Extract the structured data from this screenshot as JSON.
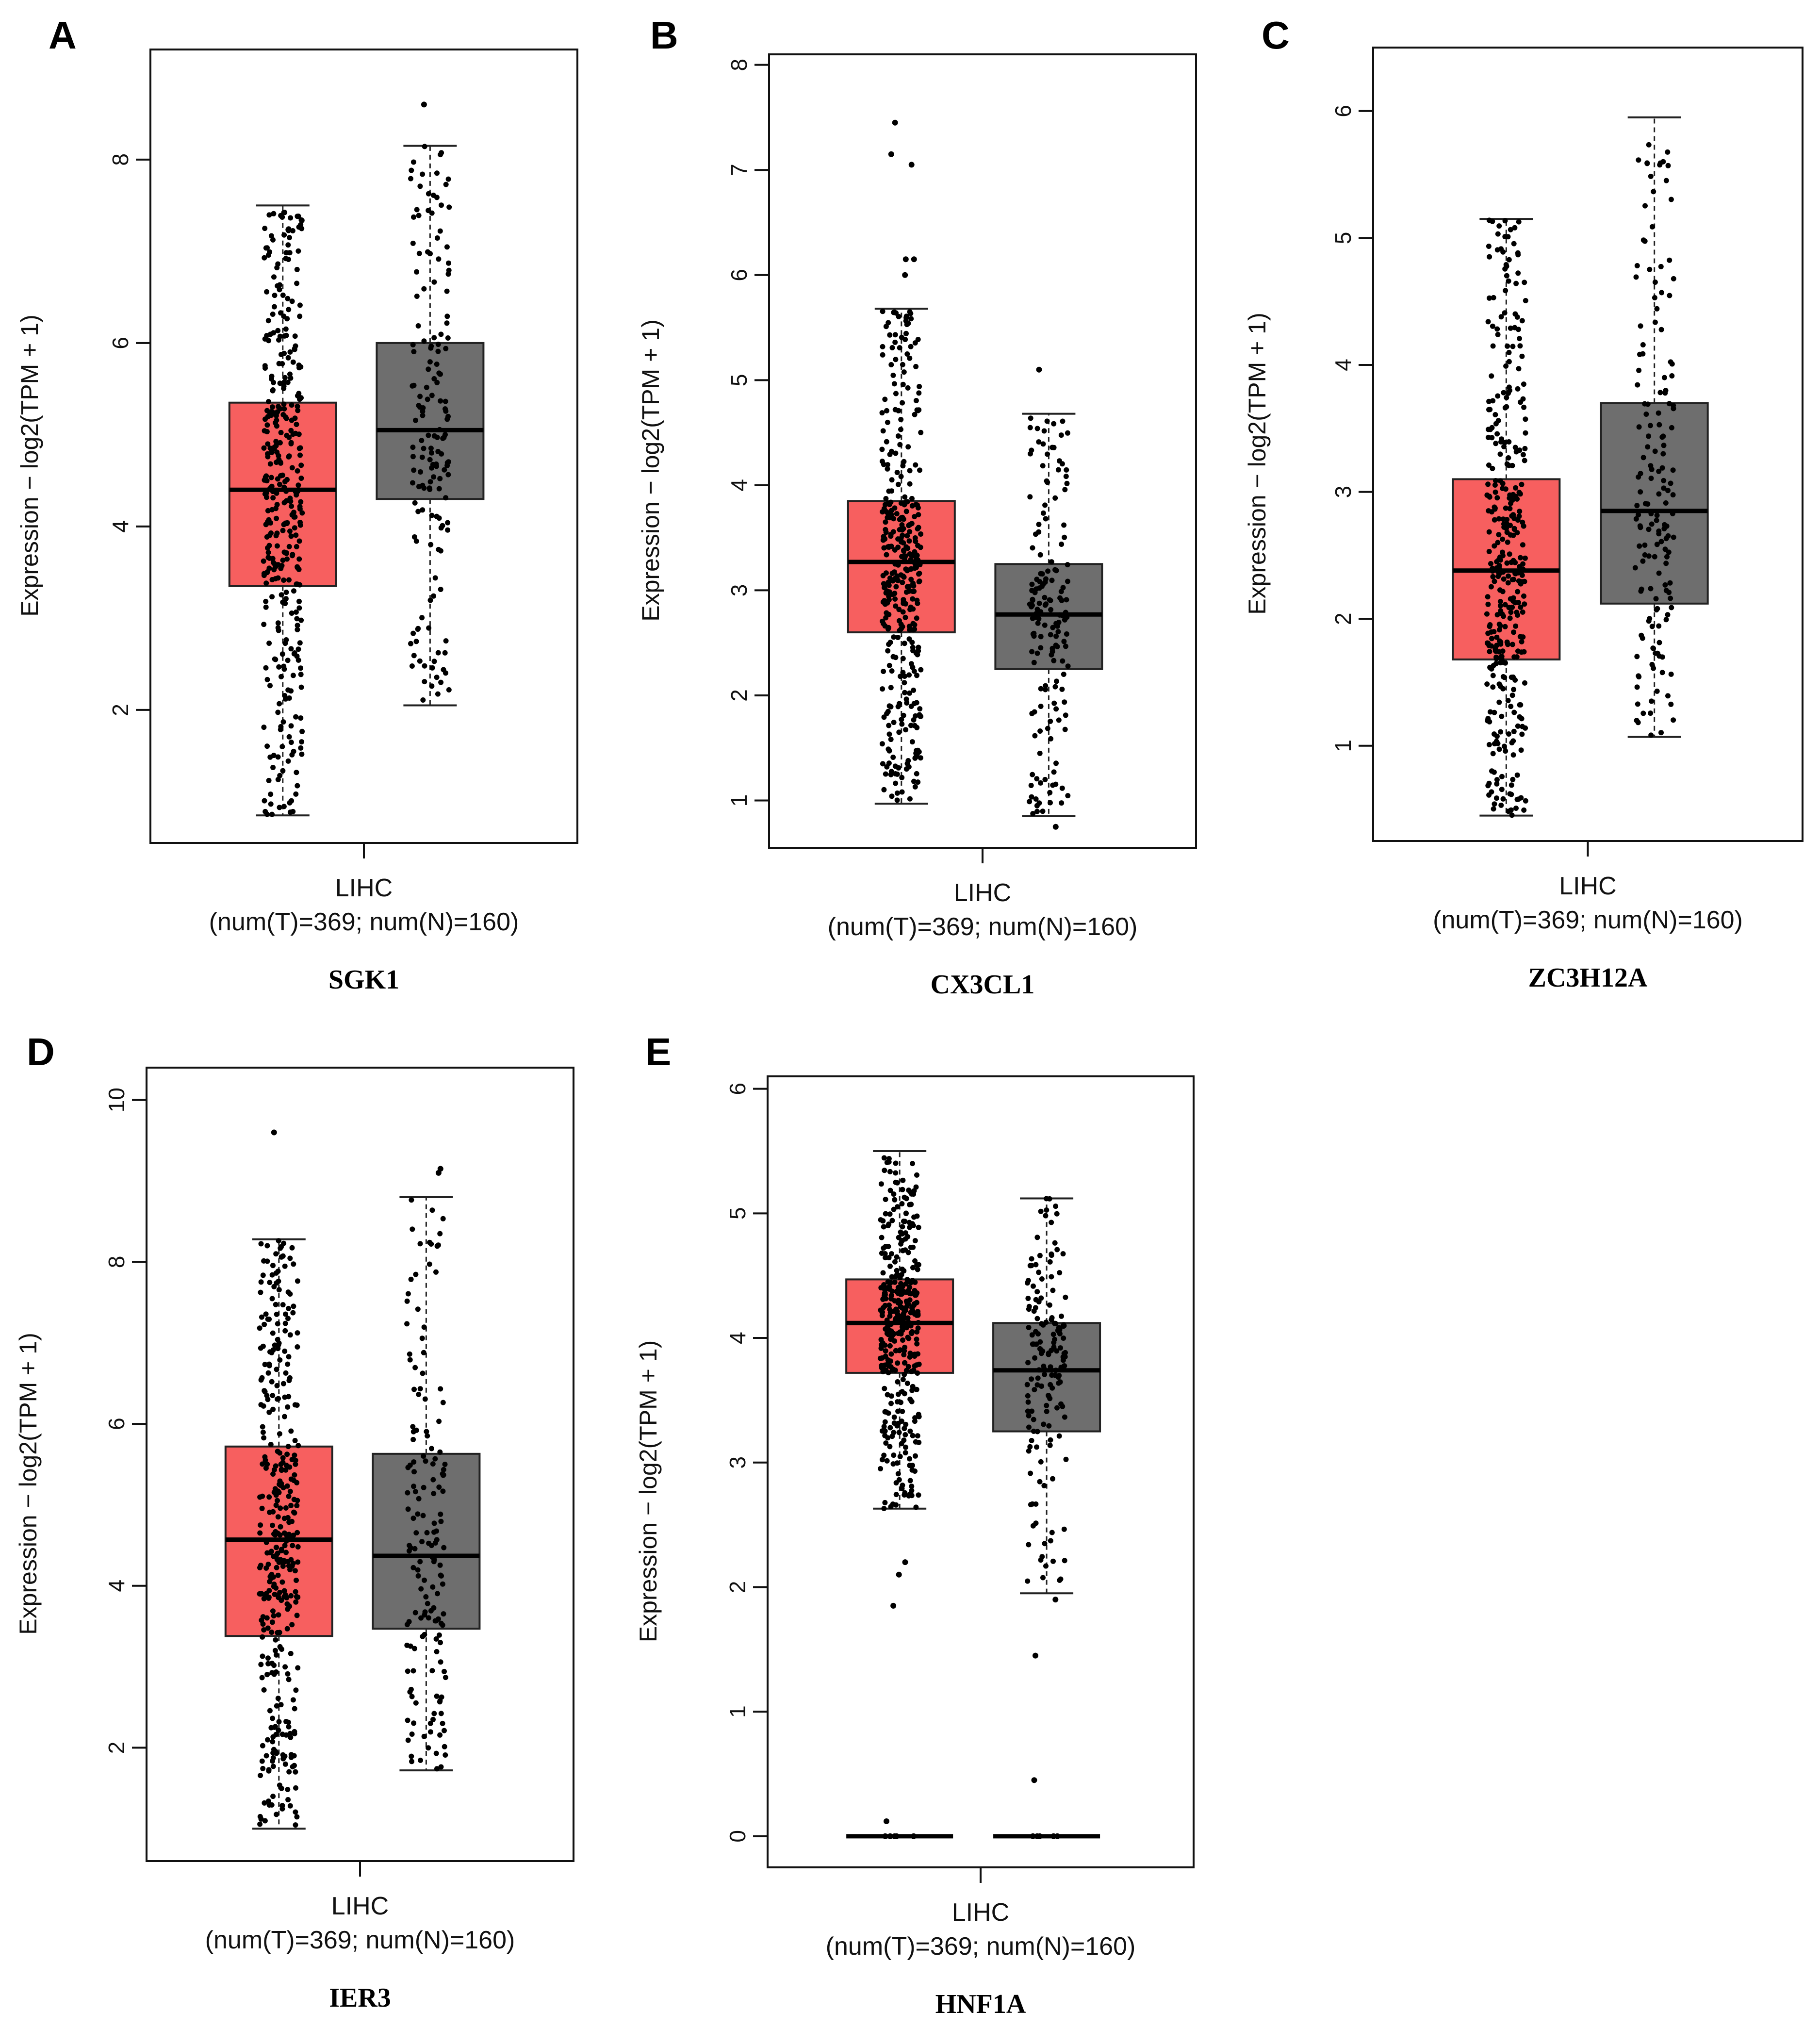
{
  "colors": {
    "tumor": "#F75F5F",
    "normal": "#6E6E6E",
    "dots": "#000000",
    "frame": "#111111"
  },
  "chart_data": [
    {
      "type": "box",
      "panel": "A",
      "title": "SGK1",
      "ylabel": "Expression − log2(TPM + 1)",
      "xlabel": "LIHC",
      "xsublabel": "(num(T)=369; num(N)=160)",
      "ylim": [
        0.55,
        9.2
      ],
      "yticks": [
        2,
        4,
        6,
        8
      ],
      "series": [
        {
          "name": "Tumor",
          "n": 369,
          "min": 0.85,
          "q1": 3.35,
          "median": 4.4,
          "q3": 5.35,
          "max": 7.5,
          "color": "#F75F5F"
        },
        {
          "name": "Normal",
          "n": 160,
          "min": 2.05,
          "q1": 4.3,
          "median": 5.05,
          "q3": 6.0,
          "max": 8.15,
          "color": "#6E6E6E",
          "outliers": [
            8.6
          ]
        }
      ]
    },
    {
      "type": "box",
      "panel": "B",
      "title": "CX3CL1",
      "ylabel": "Expression − log2(TPM + 1)",
      "xlabel": "LIHC",
      "xsublabel": "(num(T)=369; num(N)=160)",
      "ylim": [
        0.55,
        8.1
      ],
      "yticks": [
        1,
        2,
        3,
        4,
        5,
        6,
        7,
        8
      ],
      "series": [
        {
          "name": "Tumor",
          "n": 369,
          "min": 0.97,
          "q1": 2.6,
          "median": 3.27,
          "q3": 3.85,
          "max": 5.68,
          "color": "#F75F5F",
          "outliers": [
            6.0,
            6.15,
            6.15,
            7.05,
            7.15,
            7.45
          ]
        },
        {
          "name": "Normal",
          "n": 160,
          "min": 0.85,
          "q1": 2.25,
          "median": 2.77,
          "q3": 3.25,
          "max": 4.68,
          "color": "#6E6E6E",
          "outliers": [
            5.1,
            0.75
          ]
        }
      ]
    },
    {
      "type": "box",
      "panel": "C",
      "title": "ZC3H12A",
      "ylabel": "Expression − log2(TPM + 1)",
      "xlabel": "LIHC",
      "xsublabel": "(num(T)=369; num(N)=160)",
      "ylim": [
        0.25,
        6.5
      ],
      "yticks": [
        1,
        2,
        3,
        4,
        5,
        6
      ],
      "series": [
        {
          "name": "Tumor",
          "n": 369,
          "min": 0.45,
          "q1": 1.68,
          "median": 2.38,
          "q3": 3.1,
          "max": 5.15,
          "color": "#F75F5F"
        },
        {
          "name": "Normal",
          "n": 160,
          "min": 1.07,
          "q1": 2.12,
          "median": 2.85,
          "q3": 3.7,
          "max": 5.95,
          "color": "#6E6E6E"
        }
      ]
    },
    {
      "type": "box",
      "panel": "D",
      "title": "IER3",
      "ylabel": "Expression − log2(TPM + 1)",
      "xlabel": "LIHC",
      "xsublabel": "(num(T)=369; num(N)=160)",
      "ylim": [
        0.6,
        10.4
      ],
      "yticks": [
        2,
        4,
        6,
        8,
        10
      ],
      "series": [
        {
          "name": "Tumor",
          "n": 369,
          "min": 1.0,
          "q1": 3.38,
          "median": 4.57,
          "q3": 5.72,
          "max": 8.28,
          "color": "#F75F5F",
          "outliers": [
            9.6
          ]
        },
        {
          "name": "Normal",
          "n": 160,
          "min": 1.72,
          "q1": 3.47,
          "median": 4.37,
          "q3": 5.63,
          "max": 8.8,
          "color": "#6E6E6E",
          "outliers": [
            9.1,
            9.15
          ]
        }
      ]
    },
    {
      "type": "box",
      "panel": "E",
      "title": "HNF1A",
      "ylabel": "Expression − log2(TPM + 1)",
      "xlabel": "LIHC",
      "xsublabel": "(num(T)=369; num(N)=160)",
      "ylim": [
        -0.25,
        6.1
      ],
      "yticks": [
        0,
        1,
        2,
        3,
        4,
        5,
        6
      ],
      "series": [
        {
          "name": "Tumor",
          "n": 369,
          "min": 2.63,
          "q1": 3.72,
          "median": 4.12,
          "q3": 4.47,
          "max": 5.5,
          "color": "#F75F5F",
          "outliers": [
            2.2,
            2.1,
            1.85,
            0.12,
            0.0,
            0.0,
            0.0,
            0.0,
            0.0
          ]
        },
        {
          "name": "Normal",
          "n": 160,
          "min": 1.95,
          "q1": 3.25,
          "median": 3.74,
          "q3": 4.12,
          "max": 5.12,
          "color": "#6E6E6E",
          "outliers": [
            1.9,
            1.45,
            0.45,
            0.0,
            0.0,
            0.0,
            0.0,
            0.0
          ]
        }
      ]
    }
  ]
}
